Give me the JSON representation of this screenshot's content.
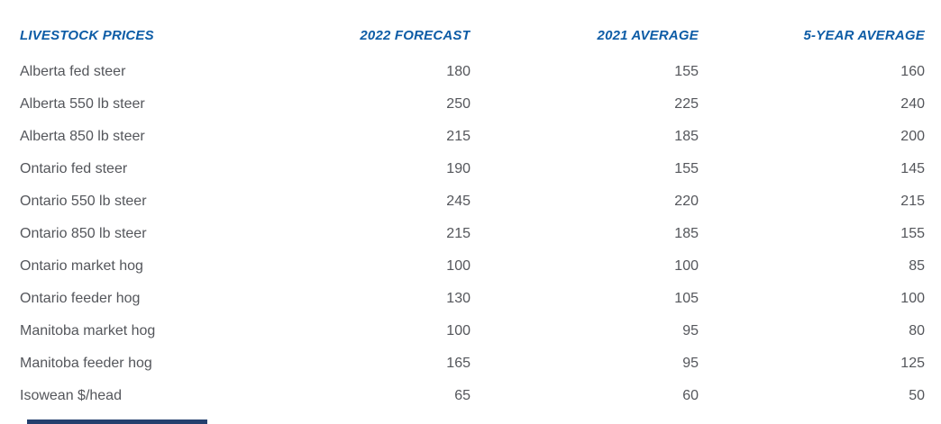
{
  "table": {
    "columns": [
      "LIVESTOCK PRICES",
      "2022 FORECAST",
      "2021 AVERAGE",
      "5-YEAR AVERAGE"
    ],
    "rows": [
      {
        "label": "Alberta fed steer",
        "values": [
          "180",
          "155",
          "160"
        ]
      },
      {
        "label": "Alberta 550 lb steer",
        "values": [
          "250",
          "225",
          "240"
        ]
      },
      {
        "label": "Alberta 850 lb steer",
        "values": [
          "215",
          "185",
          "200"
        ]
      },
      {
        "label": "Ontario fed steer",
        "values": [
          "190",
          "155",
          "145"
        ]
      },
      {
        "label": "Ontario 550 lb steer",
        "values": [
          "245",
          "220",
          "215"
        ]
      },
      {
        "label": "Ontario 850 lb steer",
        "values": [
          "215",
          "185",
          "155"
        ]
      },
      {
        "label": "Ontario market hog",
        "values": [
          "100",
          "100",
          "85"
        ]
      },
      {
        "label": "Ontario feeder hog",
        "values": [
          "130",
          "105",
          "100"
        ]
      },
      {
        "label": "Manitoba market hog",
        "values": [
          "100",
          "95",
          "80"
        ]
      },
      {
        "label": "Manitoba feeder hog",
        "values": [
          "165",
          "95",
          "125"
        ]
      },
      {
        "label": "Isowean $/head",
        "values": [
          "65",
          "60",
          "50"
        ]
      }
    ]
  },
  "colors": {
    "header_blue": "#0d5ca6",
    "body_gray": "#54565b",
    "footer_navy": "#24406e"
  },
  "chart_data": {
    "type": "table",
    "title": "LIVESTOCK PRICES",
    "columns": [
      "LIVESTOCK PRICES",
      "2022 FORECAST",
      "2021 AVERAGE",
      "5-YEAR AVERAGE"
    ],
    "categories": [
      "Alberta fed steer",
      "Alberta 550 lb steer",
      "Alberta 850 lb steer",
      "Ontario fed steer",
      "Ontario 550 lb steer",
      "Ontario 850 lb steer",
      "Ontario market hog",
      "Ontario feeder hog",
      "Manitoba market hog",
      "Manitoba feeder hog",
      "Isowean $/head"
    ],
    "series": [
      {
        "name": "2022 FORECAST",
        "values": [
          180,
          250,
          215,
          190,
          245,
          215,
          100,
          130,
          100,
          165,
          65
        ]
      },
      {
        "name": "2021 AVERAGE",
        "values": [
          155,
          225,
          185,
          155,
          220,
          185,
          100,
          105,
          95,
          95,
          60
        ]
      },
      {
        "name": "5-YEAR AVERAGE",
        "values": [
          160,
          240,
          200,
          145,
          215,
          155,
          85,
          100,
          80,
          125,
          50
        ]
      }
    ]
  }
}
